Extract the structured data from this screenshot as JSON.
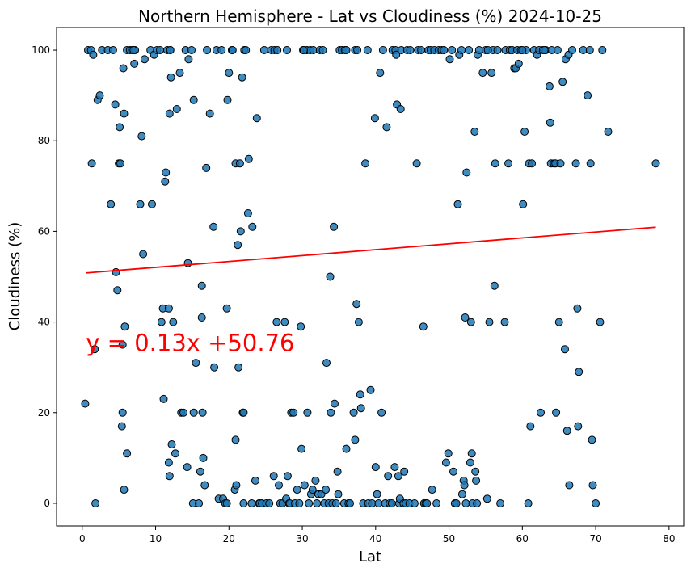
{
  "chart_data": {
    "type": "scatter",
    "title": "Northern Hemisphere - Lat vs Cloudiness (%) 2024-10-25",
    "xlabel": "Lat",
    "ylabel": "Cloudiness (%)",
    "xlim": [
      -3.5,
      82
    ],
    "ylim": [
      -5,
      105
    ],
    "xticks": [
      0,
      10,
      20,
      30,
      40,
      50,
      60,
      70,
      80
    ],
    "yticks": [
      0,
      20,
      40,
      60,
      80,
      100
    ],
    "grid": false,
    "point_color": "#1f77b4",
    "point_edge_color": "#000000",
    "line_color": "#ff0000",
    "annotation": {
      "text": "y = 0.13x +50.76",
      "x": 0.5,
      "y": 35,
      "color": "#ff0000"
    },
    "regression": {
      "slope": 0.13,
      "intercept": 50.76,
      "x_range": [
        0.5,
        78.2
      ]
    },
    "points": [
      [
        0.4,
        22
      ],
      [
        0.8,
        100
      ],
      [
        1.2,
        100
      ],
      [
        1.3,
        75
      ],
      [
        1.5,
        99
      ],
      [
        1.7,
        34
      ],
      [
        1.8,
        0
      ],
      [
        2.1,
        89
      ],
      [
        2.4,
        90
      ],
      [
        2.7,
        100
      ],
      [
        3.5,
        100
      ],
      [
        3.9,
        66
      ],
      [
        4.2,
        100
      ],
      [
        4.5,
        88
      ],
      [
        4.6,
        51
      ],
      [
        4.8,
        47
      ],
      [
        5.0,
        75
      ],
      [
        5.1,
        83
      ],
      [
        5.2,
        75
      ],
      [
        5.4,
        17
      ],
      [
        5.5,
        20
      ],
      [
        5.5,
        35
      ],
      [
        5.6,
        96
      ],
      [
        5.7,
        86
      ],
      [
        5.7,
        3
      ],
      [
        5.8,
        39
      ],
      [
        6.1,
        11
      ],
      [
        6.1,
        100
      ],
      [
        6.5,
        100
      ],
      [
        6.8,
        100
      ],
      [
        7.1,
        97
      ],
      [
        7.2,
        100
      ],
      [
        7.9,
        66
      ],
      [
        8.1,
        81
      ],
      [
        8.3,
        55
      ],
      [
        8.5,
        98
      ],
      [
        9.3,
        100
      ],
      [
        9.5,
        66
      ],
      [
        9.8,
        99
      ],
      [
        10.2,
        100
      ],
      [
        10.6,
        100
      ],
      [
        10.8,
        40
      ],
      [
        11.0,
        43
      ],
      [
        11.1,
        23
      ],
      [
        11.3,
        71
      ],
      [
        11.4,
        73
      ],
      [
        11.6,
        100
      ],
      [
        11.8,
        9
      ],
      [
        12.0,
        100
      ],
      [
        11.8,
        43
      ],
      [
        11.9,
        86
      ],
      [
        11.9,
        6
      ],
      [
        12.1,
        94
      ],
      [
        12.2,
        13
      ],
      [
        12.4,
        40
      ],
      [
        12.7,
        11
      ],
      [
        12.9,
        87
      ],
      [
        13.3,
        95
      ],
      [
        13.5,
        20
      ],
      [
        13.8,
        20
      ],
      [
        14.1,
        100
      ],
      [
        14.3,
        8
      ],
      [
        14.4,
        53
      ],
      [
        14.5,
        98
      ],
      [
        14.9,
        100
      ],
      [
        15.1,
        0
      ],
      [
        15.2,
        89
      ],
      [
        15.2,
        20
      ],
      [
        15.5,
        31
      ],
      [
        15.9,
        0
      ],
      [
        16.1,
        7
      ],
      [
        16.3,
        48
      ],
      [
        16.3,
        41
      ],
      [
        16.4,
        20
      ],
      [
        16.5,
        10
      ],
      [
        16.7,
        4
      ],
      [
        16.9,
        74
      ],
      [
        17.0,
        100
      ],
      [
        17.4,
        86
      ],
      [
        17.9,
        61
      ],
      [
        18.0,
        30
      ],
      [
        18.3,
        100
      ],
      [
        18.6,
        1
      ],
      [
        19.0,
        100
      ],
      [
        19.2,
        1
      ],
      [
        19.5,
        0
      ],
      [
        19.7,
        0
      ],
      [
        19.7,
        43
      ],
      [
        19.8,
        89
      ],
      [
        20.0,
        95
      ],
      [
        20.4,
        100
      ],
      [
        20.8,
        3
      ],
      [
        20.9,
        14
      ],
      [
        20.9,
        75
      ],
      [
        21.0,
        4
      ],
      [
        21.2,
        57
      ],
      [
        21.3,
        30
      ],
      [
        21.5,
        75
      ],
      [
        21.6,
        60
      ],
      [
        21.8,
        94
      ],
      [
        21.9,
        20
      ],
      [
        22.0,
        20
      ],
      [
        22.0,
        0
      ],
      [
        22.1,
        100
      ],
      [
        22.3,
        100
      ],
      [
        22.6,
        64
      ],
      [
        22.7,
        76
      ],
      [
        23.1,
        0
      ],
      [
        23.2,
        61
      ],
      [
        23.6,
        5
      ],
      [
        23.8,
        85
      ],
      [
        24.1,
        0
      ],
      [
        24.2,
        0
      ],
      [
        24.5,
        0
      ],
      [
        24.8,
        100
      ],
      [
        25.1,
        0
      ],
      [
        25.5,
        0
      ],
      [
        25.8,
        100
      ],
      [
        26.1,
        6
      ],
      [
        26.2,
        100
      ],
      [
        26.5,
        40
      ],
      [
        26.6,
        100
      ],
      [
        26.8,
        4
      ],
      [
        27.0,
        0
      ],
      [
        27.3,
        0
      ],
      [
        27.6,
        40
      ],
      [
        27.8,
        1
      ],
      [
        27.9,
        100
      ],
      [
        28.0,
        6
      ],
      [
        28.2,
        0
      ],
      [
        28.3,
        0
      ],
      [
        28.5,
        20
      ],
      [
        28.8,
        20
      ],
      [
        29.0,
        0
      ],
      [
        29.3,
        3
      ],
      [
        29.6,
        0
      ],
      [
        29.8,
        39
      ],
      [
        29.9,
        12
      ],
      [
        30.1,
        100
      ],
      [
        30.3,
        4
      ],
      [
        30.6,
        100
      ],
      [
        30.7,
        20
      ],
      [
        30.9,
        0
      ],
      [
        31.1,
        100
      ],
      [
        31.2,
        2
      ],
      [
        31.4,
        3
      ],
      [
        31.5,
        100
      ],
      [
        31.8,
        5
      ],
      [
        32.0,
        0
      ],
      [
        32.2,
        2
      ],
      [
        32.4,
        100
      ],
      [
        32.6,
        2
      ],
      [
        32.8,
        100
      ],
      [
        33.0,
        0
      ],
      [
        33.2,
        3
      ],
      [
        33.3,
        31
      ],
      [
        33.6,
        0
      ],
      [
        33.8,
        50
      ],
      [
        33.9,
        20
      ],
      [
        34.1,
        0
      ],
      [
        34.3,
        61
      ],
      [
        34.4,
        22
      ],
      [
        34.6,
        0
      ],
      [
        34.8,
        7
      ],
      [
        34.9,
        2
      ],
      [
        35.1,
        100
      ],
      [
        35.4,
        100
      ],
      [
        35.7,
        0
      ],
      [
        35.8,
        100
      ],
      [
        36.0,
        12
      ],
      [
        36.3,
        0
      ],
      [
        36.5,
        0
      ],
      [
        37.0,
        20
      ],
      [
        37.2,
        14
      ],
      [
        37.2,
        100
      ],
      [
        37.4,
        44
      ],
      [
        37.5,
        100
      ],
      [
        37.7,
        40
      ],
      [
        37.9,
        24
      ],
      [
        38.0,
        21
      ],
      [
        38.3,
        0
      ],
      [
        38.6,
        75
      ],
      [
        38.9,
        100
      ],
      [
        39.0,
        0
      ],
      [
        39.3,
        25
      ],
      [
        39.5,
        0
      ],
      [
        39.9,
        85
      ],
      [
        40.0,
        8
      ],
      [
        40.2,
        2
      ],
      [
        40.4,
        0
      ],
      [
        40.6,
        95
      ],
      [
        40.8,
        20
      ],
      [
        41.0,
        100
      ],
      [
        41.3,
        0
      ],
      [
        41.5,
        83
      ],
      [
        41.7,
        6
      ],
      [
        41.9,
        0
      ],
      [
        42.2,
        0
      ],
      [
        42.3,
        100
      ],
      [
        42.6,
        8
      ],
      [
        42.7,
        100
      ],
      [
        42.8,
        99
      ],
      [
        42.9,
        88
      ],
      [
        43.1,
        6
      ],
      [
        43.2,
        0
      ],
      [
        43.3,
        1
      ],
      [
        43.4,
        87
      ],
      [
        43.5,
        100
      ],
      [
        43.8,
        0
      ],
      [
        43.9,
        7
      ],
      [
        44.1,
        0
      ],
      [
        44.3,
        100
      ],
      [
        44.6,
        0
      ],
      [
        45.3,
        0
      ],
      [
        45.6,
        75
      ],
      [
        45.8,
        100
      ],
      [
        46.2,
        100
      ],
      [
        46.5,
        39
      ],
      [
        46.6,
        0
      ],
      [
        46.8,
        0
      ],
      [
        47.0,
        0
      ],
      [
        47.2,
        100
      ],
      [
        47.5,
        100
      ],
      [
        47.7,
        3
      ],
      [
        48.0,
        100
      ],
      [
        48.3,
        0
      ],
      [
        48.6,
        100
      ],
      [
        49.0,
        100
      ],
      [
        49.3,
        100
      ],
      [
        49.6,
        9
      ],
      [
        49.9,
        11
      ],
      [
        50.1,
        98
      ],
      [
        50.4,
        100
      ],
      [
        50.6,
        7
      ],
      [
        50.8,
        0
      ],
      [
        51.0,
        0
      ],
      [
        51.2,
        66
      ],
      [
        51.4,
        99
      ],
      [
        51.7,
        100
      ],
      [
        51.8,
        2
      ],
      [
        52.0,
        5
      ],
      [
        52.1,
        4
      ],
      [
        52.2,
        41
      ],
      [
        52.3,
        0
      ],
      [
        52.4,
        73
      ],
      [
        52.7,
        100
      ],
      [
        52.9,
        9
      ],
      [
        53.0,
        40
      ],
      [
        53.1,
        11
      ],
      [
        53.2,
        0
      ],
      [
        53.5,
        82
      ],
      [
        53.6,
        7
      ],
      [
        53.7,
        5
      ],
      [
        53.8,
        0
      ],
      [
        53.9,
        99
      ],
      [
        54.1,
        100
      ],
      [
        54.6,
        95
      ],
      [
        55.0,
        100
      ],
      [
        55.2,
        1
      ],
      [
        55.5,
        40
      ],
      [
        55.8,
        95
      ],
      [
        56.0,
        100
      ],
      [
        56.2,
        48
      ],
      [
        56.3,
        75
      ],
      [
        56.6,
        100
      ],
      [
        57.0,
        0
      ],
      [
        57.6,
        40
      ],
      [
        57.7,
        100
      ],
      [
        58.1,
        75
      ],
      [
        58.3,
        100
      ],
      [
        58.6,
        100
      ],
      [
        58.9,
        96
      ],
      [
        59.1,
        96
      ],
      [
        59.3,
        100
      ],
      [
        59.5,
        97
      ],
      [
        59.8,
        100
      ],
      [
        60.1,
        66
      ],
      [
        60.3,
        82
      ],
      [
        60.5,
        100
      ],
      [
        60.8,
        0
      ],
      [
        60.9,
        75
      ],
      [
        61.1,
        17
      ],
      [
        61.3,
        75
      ],
      [
        61.6,
        100
      ],
      [
        62.0,
        99
      ],
      [
        62.3,
        100
      ],
      [
        62.5,
        20
      ],
      [
        62.8,
        100
      ],
      [
        63.2,
        100
      ],
      [
        63.7,
        92
      ],
      [
        63.8,
        84
      ],
      [
        63.9,
        75
      ],
      [
        64.0,
        100
      ],
      [
        64.3,
        75
      ],
      [
        64.5,
        75
      ],
      [
        64.6,
        20
      ],
      [
        64.8,
        100
      ],
      [
        65.0,
        40
      ],
      [
        65.2,
        75
      ],
      [
        65.5,
        93
      ],
      [
        65.8,
        34
      ],
      [
        65.9,
        98
      ],
      [
        66.1,
        16
      ],
      [
        66.3,
        99
      ],
      [
        66.4,
        4
      ],
      [
        66.8,
        100
      ],
      [
        67.3,
        75
      ],
      [
        67.5,
        43
      ],
      [
        67.6,
        17
      ],
      [
        67.7,
        29
      ],
      [
        68.3,
        100
      ],
      [
        68.9,
        90
      ],
      [
        69.2,
        100
      ],
      [
        69.3,
        75
      ],
      [
        69.5,
        14
      ],
      [
        69.6,
        4
      ],
      [
        70.0,
        0
      ],
      [
        70.6,
        40
      ],
      [
        70.9,
        100
      ],
      [
        71.7,
        82
      ],
      [
        78.2,
        75
      ],
      [
        44.7,
        100
      ],
      [
        36.0,
        100
      ],
      [
        30.2,
        100
      ],
      [
        12.0,
        100
      ],
      [
        60.0,
        100
      ],
      [
        63.0,
        100
      ],
      [
        55.3,
        100
      ],
      [
        7.0,
        100
      ],
      [
        20.5,
        100
      ]
    ]
  }
}
